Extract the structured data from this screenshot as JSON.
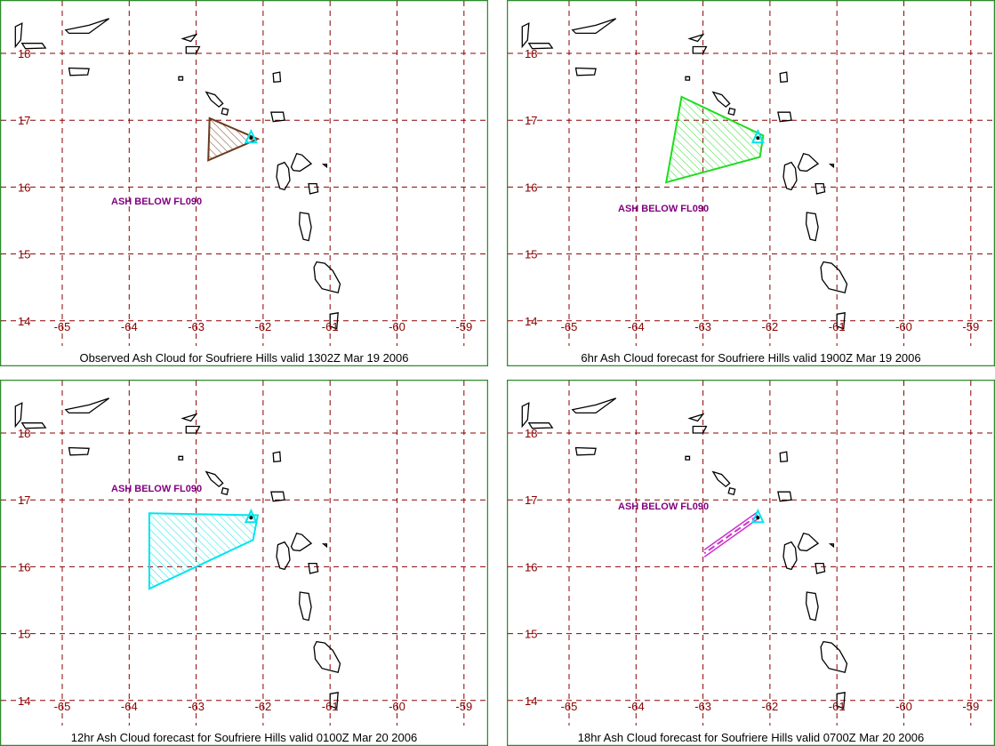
{
  "colors": {
    "frame": "#2e8b2e",
    "grid": "#8b0000",
    "tick": "#8b0000",
    "label": "#800080",
    "volcano": "#00e5ee"
  },
  "axes": {
    "lat_ticks": [
      "18",
      "17",
      "16",
      "15",
      "14"
    ],
    "lon_ticks": [
      "-65",
      "-64",
      "-63",
      "-62",
      "-61",
      "-60",
      "-59"
    ]
  },
  "panels": [
    {
      "caption": "Observed Ash Cloud for Soufriere  Hills valid 1302Z Mar 19 2006",
      "ash_label": "ASH BELOW FL090",
      "cloud_color": "#6b3a1f",
      "cloud_shape": "polygon",
      "cloud_vertices": [
        [
          -62.8,
          17.03
        ],
        [
          -62.08,
          16.72
        ],
        [
          -62.82,
          16.4
        ]
      ]
    },
    {
      "caption": "6hr Ash Cloud forecast for Soufriere  Hills valid 1900Z Mar 19 2006",
      "ash_label": "ASH BELOW FL090",
      "cloud_color": "#1fdc1f",
      "cloud_shape": "polygon",
      "cloud_vertices": [
        [
          -63.32,
          17.35
        ],
        [
          -62.1,
          16.77
        ],
        [
          -62.15,
          16.45
        ],
        [
          -63.55,
          16.07
        ]
      ]
    },
    {
      "caption": "12hr Ash Cloud forecast for Soufriere  Hills valid 0100Z Mar 20 2006",
      "ash_label": "ASH BELOW FL090",
      "cloud_color": "#00e5ee",
      "cloud_shape": "polygon",
      "cloud_vertices": [
        [
          -63.7,
          16.8
        ],
        [
          -62.08,
          16.77
        ],
        [
          -62.15,
          16.4
        ],
        [
          -63.7,
          15.67
        ]
      ]
    },
    {
      "caption": "18hr Ash Cloud forecast for Soufriere  Hills valid 0700Z Mar 20 2006",
      "ash_label": "ASH BELOW FL090",
      "cloud_color": "#cc33cc",
      "cloud_shape": "band",
      "cloud_vertices": [
        [
          -62.18,
          16.77
        ],
        [
          -62.98,
          16.2
        ]
      ]
    }
  ]
}
